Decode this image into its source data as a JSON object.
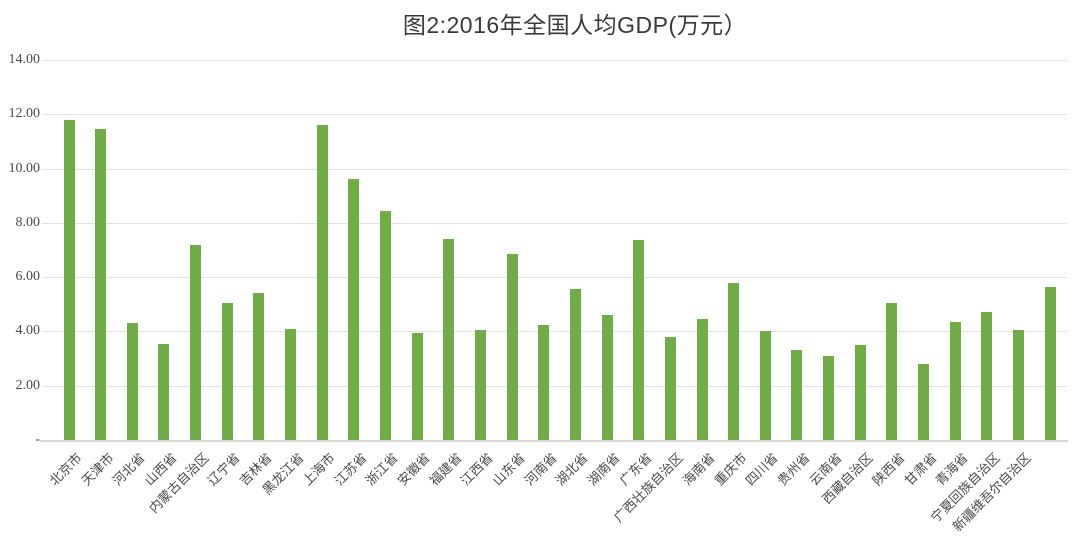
{
  "chart_data": {
    "type": "bar",
    "title": "图2:2016年全国人均GDP(万元）",
    "xlabel": "",
    "ylabel": "",
    "ylim": [
      0,
      14
    ],
    "grid": true,
    "legend": "none",
    "categories": [
      "北京市",
      "天津市",
      "河北省",
      "山西省",
      "内蒙古自治区",
      "辽宁省",
      "吉林省",
      "黑龙江省",
      "上海市",
      "江苏省",
      "浙江省",
      "安徽省",
      "福建省",
      "江西省",
      "山东省",
      "河南省",
      "湖北省",
      "湖南省",
      "广东省",
      "广西壮族自治区",
      "海南省",
      "重庆市",
      "四川省",
      "贵州省",
      "云南省",
      "西藏自治区",
      "陕西省",
      "甘肃省",
      "青海省",
      "宁夏回族自治区",
      "新疆维吾尔自治区",
      ""
    ],
    "values": [
      11.8,
      11.45,
      4.3,
      3.55,
      7.2,
      5.05,
      5.4,
      4.1,
      11.6,
      9.6,
      8.45,
      3.95,
      7.4,
      4.05,
      6.85,
      4.25,
      5.55,
      4.6,
      7.35,
      3.8,
      4.45,
      5.8,
      4.0,
      3.3,
      3.1,
      3.5,
      5.05,
      2.8,
      4.35,
      4.7,
      4.05,
      5.65
    ],
    "y_ticks": [
      {
        "label": "14.00",
        "value": 14
      },
      {
        "label": "12.00",
        "value": 12
      },
      {
        "label": "10.00",
        "value": 10
      },
      {
        "label": "8.00",
        "value": 8
      },
      {
        "label": "6.00",
        "value": 6
      },
      {
        "label": "4.00",
        "value": 4
      },
      {
        "label": "2.00",
        "value": 2
      },
      {
        "label": "-",
        "value": 0
      }
    ],
    "colors": {
      "bar": "#70AD47",
      "gridline": "#E0E0E0",
      "baseline": "#D9D9D9",
      "axis_text": "#4A4A4A",
      "title_text": "#3A3A3A",
      "background": "#FFFFFF"
    }
  }
}
